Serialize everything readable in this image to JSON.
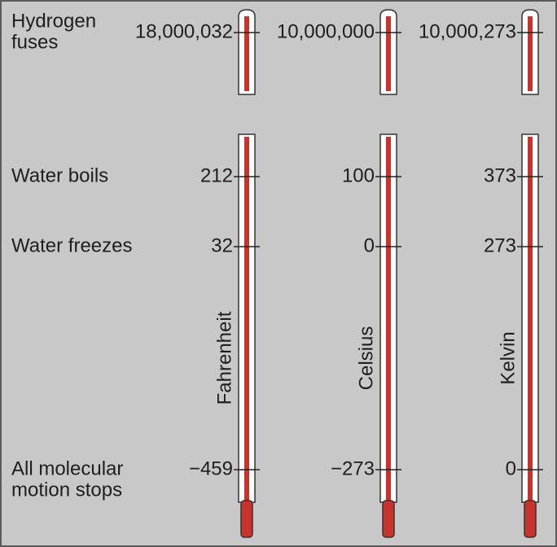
{
  "rows": [
    {
      "label_lines": [
        "Hydrogen",
        "fuses"
      ]
    },
    {
      "label_lines": [
        "Water boils"
      ]
    },
    {
      "label_lines": [
        "Water freezes"
      ]
    },
    {
      "label_lines": [
        "All molecular",
        "motion stops"
      ]
    }
  ],
  "scales": [
    {
      "name": "Fahrenheit",
      "marks": [
        "18,000,032",
        "212",
        "32",
        "−459"
      ]
    },
    {
      "name": "Celsius",
      "marks": [
        "10,000,000",
        "100",
        "0",
        "−273"
      ]
    },
    {
      "name": "Kelvin",
      "marks": [
        "10,000,273",
        "373",
        "273",
        "0"
      ]
    }
  ]
}
